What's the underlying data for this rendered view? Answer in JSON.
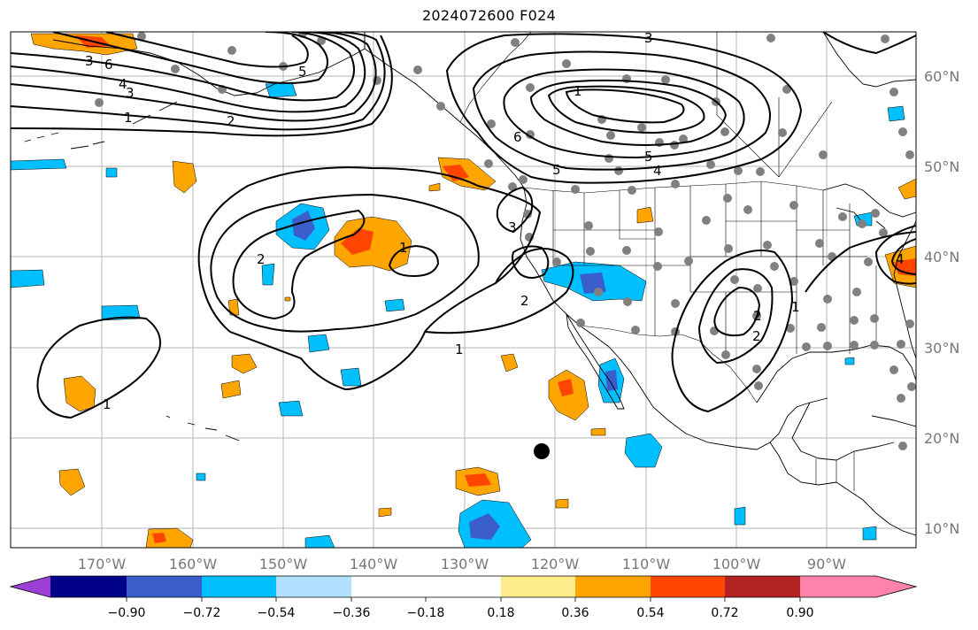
{
  "title": "2024072600 F024",
  "map": {
    "longitude_labels": [
      "170°W",
      "160°W",
      "150°W",
      "140°W",
      "130°W",
      "120°W",
      "110°W",
      "100°W",
      "90°W"
    ],
    "latitude_labels": [
      "60°N",
      "50°N",
      "40°N",
      "30°N",
      "20°N",
      "10°N"
    ],
    "contour_labels": [
      "1",
      "2",
      "1",
      "1",
      "2",
      "3",
      "1",
      "2",
      "3",
      "4",
      "5",
      "6",
      "1",
      "2",
      "3",
      "6",
      "5",
      "4",
      "1",
      "2",
      "3",
      "4",
      "5"
    ]
  },
  "colorbar": {
    "tick_labels": [
      "−0.90",
      "−0.72",
      "−0.54",
      "−0.36",
      "−0.18",
      "0.18",
      "0.36",
      "0.54",
      "0.72",
      "0.90"
    ],
    "colors": [
      "#9b3fd6",
      "#00008b",
      "#3a5fcd",
      "#00bfff",
      "#b0e2ff",
      "#ffffff",
      "#ffec8b",
      "#ffa500",
      "#ff4500",
      "#b22222",
      "#ff82ab"
    ]
  }
}
